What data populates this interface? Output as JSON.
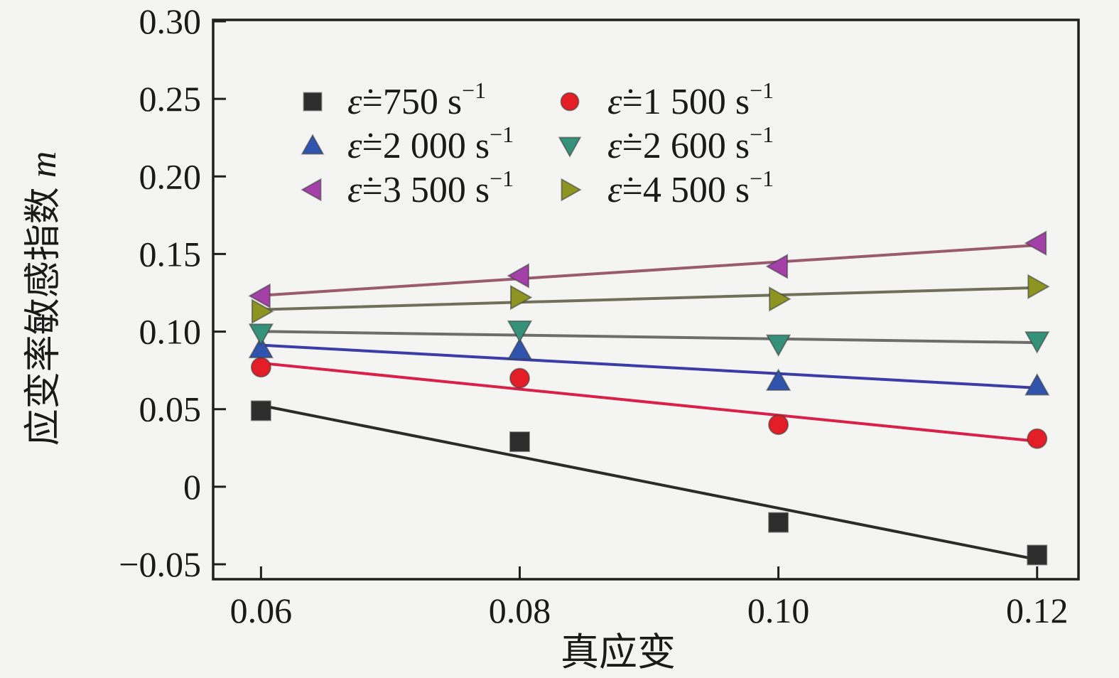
{
  "figure": {
    "background": "#f4f4f2",
    "text_color": "#1a1a1a",
    "frame_color": "#1f1f1f"
  },
  "chart_data": {
    "type": "scatter",
    "title": "",
    "xlabel": "真应变",
    "ylabel": "应变率敏感指数 m",
    "ylabel_cjk": "应变率敏感指数",
    "ylabel_symbol": "m",
    "x": [
      0.06,
      0.08,
      0.1,
      0.12
    ],
    "xlim": [
      0.0563,
      0.1232
    ],
    "ylim": [
      -0.0596,
      0.3009
    ],
    "grid": false,
    "x_ticks": [
      {
        "value": 0.06,
        "label": "0.06"
      },
      {
        "value": 0.08,
        "label": "0.08"
      },
      {
        "value": 0.1,
        "label": "0.10"
      },
      {
        "value": 0.12,
        "label": "0.12"
      }
    ],
    "y_ticks": [
      {
        "value": 0.3,
        "label": "0.30"
      },
      {
        "value": 0.25,
        "label": "0.25"
      },
      {
        "value": 0.2,
        "label": "0.20"
      },
      {
        "value": 0.15,
        "label": "0.15"
      },
      {
        "value": 0.1,
        "label": "0.10"
      },
      {
        "value": 0.05,
        "label": "0.05"
      },
      {
        "value": 0.0,
        "label": "0"
      },
      {
        "value": -0.05,
        "label": "−0.05"
      }
    ],
    "legend": {
      "position": "upper-left-inside",
      "columns": 2
    },
    "trendlines": "linear",
    "series": [
      {
        "id": "750",
        "label": "ε̇=750 s⁻¹",
        "label_parts": {
          "eps": "ε̇",
          "mid": "=750 s",
          "sup": "−1"
        },
        "marker": "square",
        "marker_color": "#2d2d2d",
        "line_color": "#2b2b2b",
        "values": [
          0.049,
          0.029,
          -0.023,
          -0.044
        ]
      },
      {
        "id": "1500",
        "label": "ε̇=1 500 s⁻¹",
        "label_parts": {
          "eps": "ε̇",
          "mid": "=1 500 s",
          "sup": "−1"
        },
        "marker": "circle",
        "marker_color": "#e41e26",
        "line_color": "#d92048",
        "values": [
          0.077,
          0.07,
          0.04,
          0.031
        ]
      },
      {
        "id": "2000",
        "label": "ε̇=2 000 s⁻¹",
        "label_parts": {
          "eps": "ε̇",
          "mid": "=2 000 s",
          "sup": "−1"
        },
        "marker": "triangle-up",
        "marker_color": "#3053ae",
        "line_color": "#3c3ca8",
        "values": [
          0.089,
          0.088,
          0.068,
          0.065
        ]
      },
      {
        "id": "2600",
        "label": "ε̇=2 600 s⁻¹",
        "label_parts": {
          "eps": "ε̇",
          "mid": "=2 600 s",
          "sup": "−1"
        },
        "marker": "triangle-down",
        "marker_color": "#35917a",
        "line_color": "#6d6d6d",
        "values": [
          0.099,
          0.101,
          0.092,
          0.094
        ]
      },
      {
        "id": "3500",
        "label": "ε̇=3 500 s⁻¹",
        "label_parts": {
          "eps": "ε̇",
          "mid": "=3 500 s",
          "sup": "−1"
        },
        "marker": "triangle-left",
        "marker_color": "#a341a8",
        "line_color": "#9a5a70",
        "values": [
          0.123,
          0.136,
          0.142,
          0.157
        ]
      },
      {
        "id": "4500",
        "label": "ε̇=4 500 s⁻¹",
        "label_parts": {
          "eps": "ε̇",
          "mid": "=4 500 s",
          "sup": "−1"
        },
        "marker": "triangle-right",
        "marker_color": "#8d9422",
        "line_color": "#70705a",
        "values": [
          0.113,
          0.122,
          0.121,
          0.129
        ]
      }
    ]
  }
}
